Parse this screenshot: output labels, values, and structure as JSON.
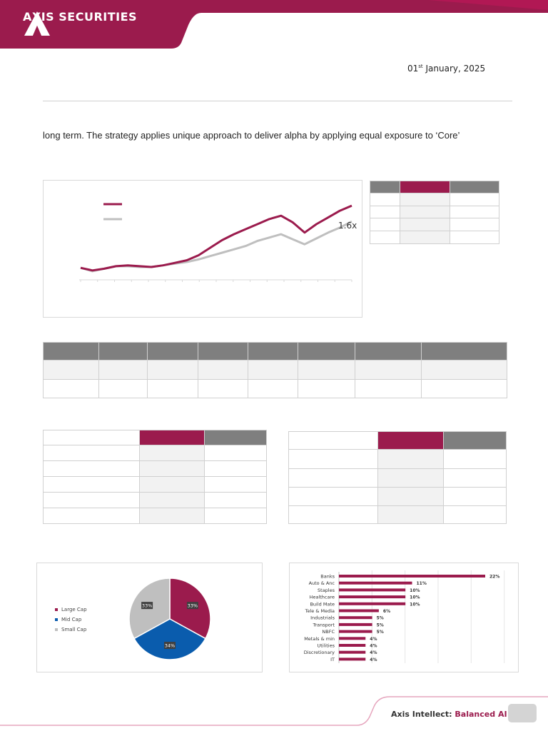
{
  "header": {
    "brand": "AXIS SECURITIES",
    "colors": {
      "brand": "#9b1b4d",
      "accent": "#e6a5bd"
    }
  },
  "date": {
    "day": "01",
    "suffix": "st",
    "rest": " January, 2025"
  },
  "paragraph": "long term. The strategy applies unique approach to deliver alpha by applying equal exposure to ‘Core’",
  "line_chart": {
    "chart_data": {
      "type": "line",
      "annotation": "1.6x",
      "series": [
        {
          "color": "#9b1b4d",
          "values": [
            1.0,
            0.97,
            0.99,
            1.02,
            1.03,
            1.02,
            1.01,
            1.03,
            1.06,
            1.09,
            1.15,
            1.24,
            1.33,
            1.4,
            1.46,
            1.52,
            1.58,
            1.62,
            1.54,
            1.42,
            1.52,
            1.6,
            1.68,
            1.74
          ]
        },
        {
          "color": "#bfbfbf",
          "values": [
            1.0,
            0.96,
            0.99,
            1.02,
            1.02,
            1.01,
            1.01,
            1.03,
            1.05,
            1.07,
            1.1,
            1.14,
            1.18,
            1.22,
            1.26,
            1.32,
            1.36,
            1.4,
            1.34,
            1.28,
            1.35,
            1.42,
            1.48,
            1.55
          ]
        }
      ]
    }
  },
  "pie_chart": {
    "chart_data": {
      "type": "pie",
      "slices": [
        {
          "name": "Large Cap",
          "value": 33,
          "label": "33%",
          "color": "#9b1b4d"
        },
        {
          "name": "Mid Cap",
          "value": 34,
          "label": "34%",
          "color": "#0a5cad"
        },
        {
          "name": "Small Cap",
          "value": 33,
          "label": "33%",
          "color": "#bfbfbf"
        }
      ]
    }
  },
  "bar_chart": {
    "chart_data": {
      "type": "bar",
      "orientation": "horizontal",
      "color": "#9b1b4d",
      "categories": [
        "Banks",
        "Auto & Anc",
        "Staples",
        "Healthcare",
        "Build Mate",
        "Tele & Media",
        "Industrials",
        "Transport",
        "NBFC",
        "Metals & min",
        "Utilities",
        "Discretionary",
        "IT"
      ],
      "values": [
        22,
        11,
        10,
        10,
        10,
        6,
        5,
        5,
        5,
        4,
        4,
        4,
        4
      ],
      "labels": [
        "22%",
        "11%",
        "10%",
        "10%",
        "10%",
        "6%",
        "5%",
        "5%",
        "5%",
        "4%",
        "4%",
        "4%",
        "4%"
      ]
    }
  },
  "footer": {
    "title": "Axis Intellect: ",
    "subtitle": "Balanced AI"
  }
}
